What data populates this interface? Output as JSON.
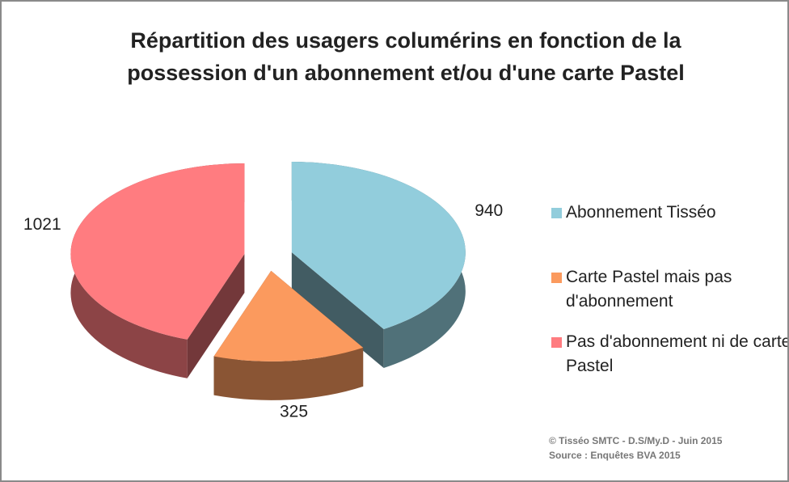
{
  "chart_data": {
    "type": "pie3d",
    "title": "Répartition des usagers columérins en fonction de la possession d'un abonnement et/ou d'une carte Pastel",
    "categories": [
      "Abonnement Tisséo",
      "Carte Pastel mais pas d'abonnement",
      "Pas d'abonnement ni de carte Pastel"
    ],
    "values": [
      940,
      325,
      1021
    ],
    "colors": [
      "#92cddc",
      "#fb9a5e",
      "#ff7c80"
    ],
    "legend": "right",
    "notes": [
      "© Tisséo SMTC - D.S/My.D - Juin 2015",
      "Source : Enquêtes BVA 2015"
    ]
  }
}
